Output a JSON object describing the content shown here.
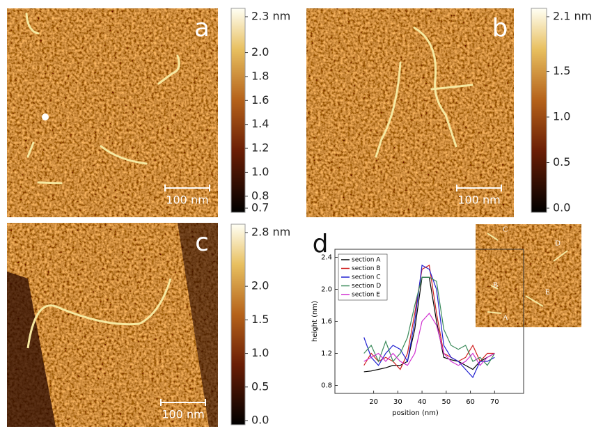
{
  "panels": [
    {
      "label": "a",
      "scale_bar": "100 nm",
      "colorbar": {
        "lim": [
          0.7,
          2.3
        ],
        "ticks": [
          {
            "value": 2.3,
            "label": "2.3 nm"
          },
          {
            "value": 2,
            "label": "2.0"
          },
          1.8,
          1.6,
          1.4,
          1.2,
          {
            "value": 1,
            "label": "1.0"
          },
          0.8,
          0.7
        ]
      }
    },
    {
      "label": "b",
      "scale_bar": "100 nm",
      "colorbar": {
        "lim": [
          0,
          2.1
        ],
        "ticks": [
          {
            "value": 2.1,
            "label": "2.1 nm"
          },
          1.5,
          {
            "value": 1,
            "label": "1.0"
          },
          0.5,
          {
            "value": 0,
            "label": "0.0"
          }
        ]
      }
    },
    {
      "label": "c",
      "scale_bar": "100 nm",
      "colorbar": {
        "lim": [
          0,
          2.8
        ],
        "ticks": [
          {
            "value": 2.8,
            "label": "2.8 nm"
          },
          {
            "value": 2,
            "label": "2.0"
          },
          1.5,
          {
            "value": 1,
            "label": "1.0"
          },
          0.5,
          {
            "value": 0,
            "label": "0.0"
          }
        ]
      }
    }
  ],
  "inset": {
    "labels": [
      "C",
      "D",
      "B",
      "E",
      "A"
    ]
  },
  "chart_data": {
    "type": "line",
    "label": "d",
    "x_label": "position (nm)",
    "y_label": "height (nm)",
    "x": [
      16,
      19,
      22,
      25,
      28,
      31,
      34,
      37,
      40,
      43,
      46,
      49,
      52,
      55,
      58,
      61,
      64,
      67,
      70
    ],
    "series": [
      {
        "name": "section A",
        "color": "#000000",
        "values": [
          0.97,
          0.98,
          1.0,
          1.02,
          1.05,
          1.05,
          1.1,
          1.5,
          2.15,
          2.15,
          1.6,
          1.15,
          1.12,
          1.1,
          1.05,
          1.0,
          1.1,
          1.15,
          1.2
        ]
      },
      {
        "name": "section B",
        "color": "#d02020",
        "values": [
          1.05,
          1.2,
          1.1,
          1.15,
          1.1,
          1.0,
          1.2,
          1.7,
          2.25,
          2.3,
          1.7,
          1.2,
          1.15,
          1.1,
          1.15,
          1.3,
          1.1,
          1.2,
          1.2
        ]
      },
      {
        "name": "section C",
        "color": "#2020d0",
        "values": [
          1.4,
          1.15,
          1.05,
          1.2,
          1.3,
          1.25,
          1.1,
          1.6,
          2.3,
          2.25,
          2.0,
          1.3,
          1.15,
          1.1,
          1.0,
          0.9,
          1.1,
          1.1,
          1.15
        ]
      },
      {
        "name": "section D",
        "color": "#3a8a5a",
        "values": [
          1.2,
          1.3,
          1.1,
          1.35,
          1.1,
          1.2,
          1.4,
          1.8,
          2.15,
          2.15,
          2.1,
          1.5,
          1.3,
          1.25,
          1.3,
          1.1,
          1.15,
          1.05,
          1.2
        ]
      },
      {
        "name": "section E",
        "color": "#d030d0",
        "values": [
          1.1,
          1.15,
          1.2,
          1.1,
          1.2,
          1.1,
          1.05,
          1.2,
          1.6,
          1.7,
          1.55,
          1.2,
          1.1,
          1.05,
          1.1,
          1.2,
          1.05,
          1.15,
          1.2
        ]
      }
    ],
    "xlim": [
      4,
      82
    ],
    "xticks": [
      20,
      30,
      40,
      50,
      60,
      70
    ],
    "ylim": [
      0.7,
      2.5
    ],
    "yticks": [
      0.8,
      1.2,
      1.6,
      {
        "value": 2,
        "label": "2.0"
      },
      2.4
    ],
    "legend": "upper-left"
  }
}
